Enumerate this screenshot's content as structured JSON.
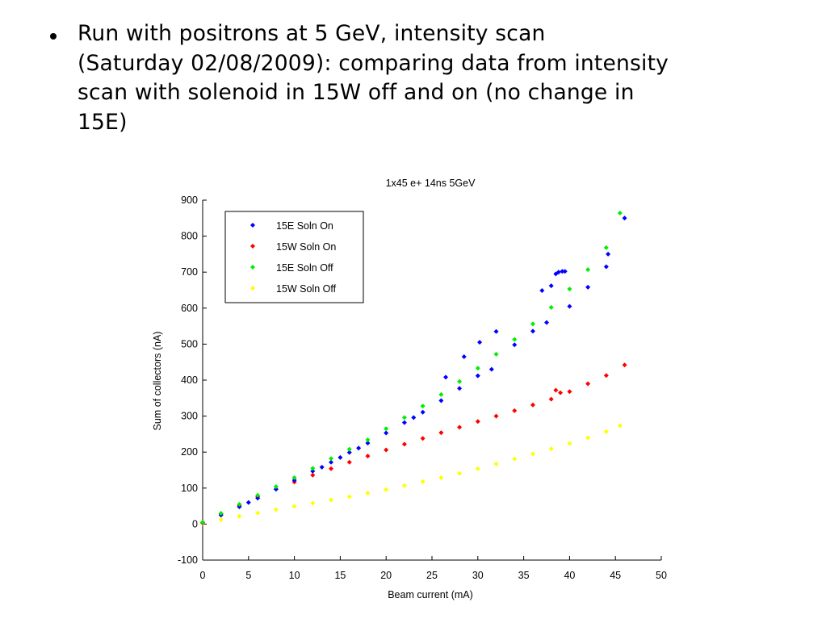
{
  "slide": {
    "bullet_text": "Run with positrons at 5 GeV, intensity scan\n(Saturday 02/08/2009): comparing data from intensity\nscan with solenoid in 15W off and on (no change in\n15E)"
  },
  "chart_data": {
    "type": "scatter",
    "title": "1x45 e+ 14ns 5GeV",
    "xlabel": "Beam current (mA)",
    "ylabel": "Sum of collectors (nA)",
    "xlim": [
      0,
      50
    ],
    "ylim": [
      -100,
      900
    ],
    "xticks": [
      0,
      5,
      10,
      15,
      20,
      25,
      30,
      35,
      40,
      45,
      50
    ],
    "yticks": [
      -100,
      0,
      100,
      200,
      300,
      400,
      500,
      600,
      700,
      800,
      900
    ],
    "grid": false,
    "legend_position": "top-left",
    "series": [
      {
        "name": "15E Soln On",
        "color": "#0000ff",
        "x": [
          0,
          2,
          4,
          5,
          6,
          8,
          10,
          12,
          13,
          14,
          15,
          16,
          17,
          18,
          20,
          22,
          23,
          24,
          26,
          26.5,
          28,
          28.5,
          30,
          30.2,
          31.5,
          32,
          34,
          36,
          37,
          37.5,
          38,
          38.5,
          38.8,
          39.2,
          39.5,
          40,
          42,
          44,
          44.2,
          46
        ],
        "y": [
          5,
          25,
          48,
          60,
          72,
          97,
          122,
          147,
          158,
          172,
          185,
          199,
          211,
          225,
          253,
          282,
          296,
          311,
          343,
          408,
          377,
          465,
          412,
          505,
          430,
          535,
          498,
          536,
          649,
          560,
          662,
          695,
          700,
          702,
          702,
          605,
          658,
          715,
          750,
          850
        ]
      },
      {
        "name": "15W Soln On",
        "color": "#ff0000",
        "x": [
          0,
          2,
          4,
          6,
          8,
          10,
          12,
          14,
          16,
          18,
          20,
          22,
          24,
          26,
          28,
          30,
          32,
          34,
          36,
          38,
          38.5,
          39,
          40,
          42,
          44,
          46
        ],
        "y": [
          3,
          28,
          52,
          76,
          97,
          117,
          136,
          154,
          172,
          189,
          206,
          222,
          238,
          254,
          269,
          285,
          300,
          315,
          331,
          347,
          372,
          365,
          368,
          390,
          413,
          442
        ]
      },
      {
        "name": "15E Soln Off",
        "color": "#00ee00",
        "x": [
          0,
          2,
          4,
          6,
          8,
          10,
          12,
          14,
          16,
          18,
          20,
          22,
          24,
          26,
          28,
          30,
          32,
          34,
          36,
          38,
          40,
          42,
          44,
          45.5
        ],
        "y": [
          5,
          30,
          55,
          80,
          104,
          129,
          155,
          182,
          208,
          234,
          265,
          296,
          328,
          360,
          396,
          433,
          472,
          513,
          556,
          602,
          653,
          707,
          768,
          864
        ]
      },
      {
        "name": "15W Soln Off",
        "color": "#ffff00",
        "x": [
          0,
          2,
          4,
          6,
          8,
          10,
          12,
          14,
          16,
          18,
          20,
          22,
          24,
          26,
          28,
          30,
          32,
          34,
          36,
          38,
          40,
          42,
          44,
          45.5
        ],
        "y": [
          2,
          12,
          22,
          31,
          40,
          49,
          58,
          67,
          76,
          86,
          96,
          107,
          118,
          129,
          141,
          154,
          167,
          181,
          195,
          209,
          224,
          240,
          257,
          274
        ]
      }
    ]
  }
}
